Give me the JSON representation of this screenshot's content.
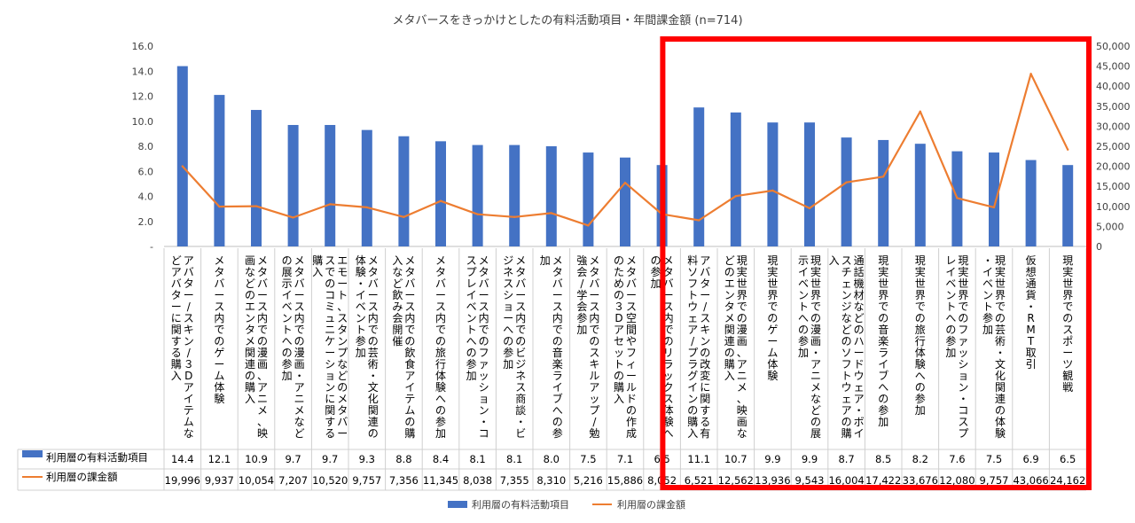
{
  "chart_data": {
    "type": "bar",
    "title": "メタバースをきっかけとしたの有料活動項目・年間課金額 (n=714)",
    "categories": [
      "アバター/スキン/３Dアイテムなどアバターに関する購入",
      "メタバース内でのゲーム体験",
      "メタバース内での漫画、アニメ、映画などのエンタメ関連の購入",
      "メタバース内での漫画・アニメなどの展示イベントへの参加",
      "エモート、スタンプなどのメタバースでのコミュニケーションに関する購入",
      "メタバース内での芸術・文化関連の体験・イベント参加",
      "メタバース内での飲食アイテムの購入など飲み会開催",
      "メタバース内での旅行体験への参加",
      "メタバース内でのファッション・コスプレイベントへの参加",
      "メタバース内でのビジネス商談・ビジネスショーへの参加",
      "メタバース内での音楽ライブへの参加",
      "メタバース内でのスキルアップ/勉強会/学会参加",
      "メタバース空間やフィールドの作成のための３Dアセットの購入",
      "メタバース内でのリラックス体験への参加",
      "アバター/スキンの改変に関する有料ソフトウェア/プラグインの購入",
      "現実世界での漫画、アニメ、映画などのエンタメ関連の購入",
      "現実世界でのゲーム体験",
      "現実世界での漫画・アニメなどの展示イベントへの参加",
      "通話機材などのハードウェア・ボイスチェンジなどのソフトウェアの購入",
      "現実世界での音楽ライブへの参加",
      "現実世界での旅行体験への参加",
      "現実世界でのファッション・コスプレイベントへの参加",
      "現実世界での芸術・文化関連の体験・イベント参加",
      "仮想通貨・RMT取引",
      "現実世界でのスポーツ観戦"
    ],
    "series": [
      {
        "name": "利用層の有料活動項目",
        "chart": "bar",
        "axis": "left",
        "color": "#4472C4",
        "values": [
          14.4,
          12.1,
          10.9,
          9.7,
          9.7,
          9.3,
          8.8,
          8.4,
          8.1,
          8.1,
          8.0,
          7.5,
          7.1,
          6.5,
          11.1,
          10.7,
          9.9,
          9.9,
          8.7,
          8.5,
          8.2,
          7.6,
          7.5,
          6.9,
          6.5
        ],
        "labels": [
          "14.4",
          "12.1",
          "10.9",
          "9.7",
          "9.7",
          "9.3",
          "8.8",
          "8.4",
          "8.1",
          "8.1",
          "8.0",
          "7.5",
          "7.1",
          "6.5",
          "11.1",
          "10.7",
          "9.9",
          "9.9",
          "8.7",
          "8.5",
          "8.2",
          "7.6",
          "7.5",
          "6.9",
          "6.5"
        ]
      },
      {
        "name": "利用層の課金額",
        "chart": "line",
        "axis": "right",
        "color": "#ED7D31",
        "values": [
          19996,
          9937,
          10054,
          7207,
          10520,
          9757,
          7356,
          11345,
          8038,
          7355,
          8310,
          5216,
          15886,
          8052,
          6521,
          12562,
          13936,
          9543,
          16004,
          17422,
          33676,
          12080,
          9757,
          43066,
          24162
        ],
        "labels": [
          "19,996",
          "9,937",
          "10,054",
          "7,207",
          "10,520",
          "9,757",
          "7,356",
          "11,345",
          "8,038",
          "7,355",
          "8,310",
          "5,216",
          "15,886",
          "8,052",
          "6,521",
          "12,562",
          "13,936",
          "9,543",
          "16,004",
          "17,422",
          "33,676",
          "12,080",
          "9,757",
          "43,066",
          "24,162"
        ]
      }
    ],
    "y_left": {
      "min": 0,
      "max": 16,
      "step": 2,
      "tick_labels": [
        "-",
        "2.0",
        "4.0",
        "6.0",
        "8.0",
        "10.0",
        "12.0",
        "14.0",
        "16.0"
      ]
    },
    "y_right": {
      "min": 0,
      "max": 50000,
      "step": 5000,
      "tick_labels": [
        "0",
        "5,000",
        "10,000",
        "15,000",
        "20,000",
        "25,000",
        "30,000",
        "35,000",
        "40,000",
        "45,000",
        "50,000"
      ]
    },
    "grid": false,
    "legend_position": "bottom",
    "highlight": {
      "from_index": 14,
      "to_index": 24,
      "color": "#FF0000"
    }
  }
}
